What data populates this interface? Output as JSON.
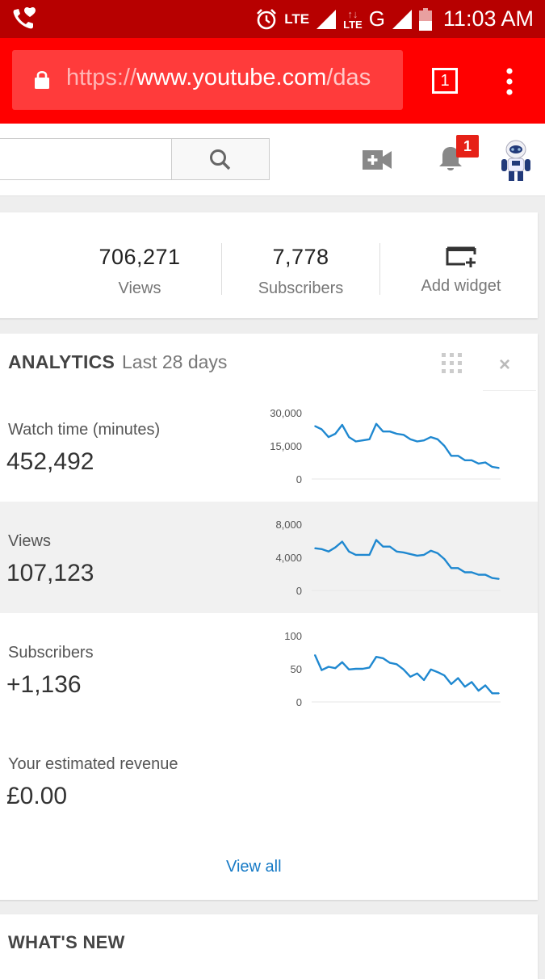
{
  "status_bar": {
    "network_label": "LTE",
    "data_label": "LTE",
    "network_type": "G",
    "time": "11:03 AM"
  },
  "browser": {
    "url_scheme": "https://",
    "url_host": "www.youtube.com",
    "url_path": "/das",
    "tab_count": "1"
  },
  "header": {
    "notification_count": "1",
    "icons": [
      "search-icon",
      "upload-video-icon",
      "bell-icon",
      "avatar"
    ]
  },
  "stats": [
    {
      "value": "706,271",
      "label": "Views"
    },
    {
      "value": "7,778",
      "label": "Subscribers"
    },
    {
      "value": "",
      "label": "Add widget"
    }
  ],
  "analytics": {
    "title": "ANALYTICS",
    "range": "Last 28 days",
    "metrics": [
      {
        "label": "Watch time (minutes)",
        "value": "452,492"
      },
      {
        "label": "Views",
        "value": "107,123"
      },
      {
        "label": "Subscribers",
        "value": "+1,136"
      },
      {
        "label": "Your estimated revenue",
        "value": "£0.00"
      }
    ],
    "view_all": "View all"
  },
  "whats_new": {
    "title": "WHAT'S NEW"
  },
  "colors": {
    "status_bar": "#b70000",
    "toolbar": "#ff0000",
    "sparkline": "#1f88d0",
    "link": "#167ac6"
  },
  "chart_data": [
    {
      "type": "line",
      "series": [
        {
          "values": [
            24000,
            22500,
            19000,
            20500,
            24500,
            19000,
            17000,
            17500,
            18000,
            25000,
            21500,
            21500,
            20500,
            20000,
            18000,
            17000,
            17500,
            19000,
            18000,
            15000,
            10500,
            10500,
            8500,
            8500,
            7000,
            7500,
            5500,
            5000
          ]
        }
      ],
      "y_ticks": [
        "30,000",
        "15,000",
        "0"
      ],
      "ylim": [
        0,
        30000
      ]
    },
    {
      "type": "line",
      "series": [
        {
          "values": [
            5100,
            5000,
            4700,
            5200,
            5900,
            4700,
            4300,
            4300,
            4300,
            6100,
            5300,
            5300,
            4700,
            4600,
            4400,
            4200,
            4300,
            4800,
            4500,
            3800,
            2700,
            2700,
            2200,
            2200,
            1900,
            1900,
            1500,
            1400
          ]
        }
      ],
      "y_ticks": [
        "8,000",
        "4,000",
        "0"
      ],
      "ylim": [
        0,
        8000
      ]
    },
    {
      "type": "line",
      "series": [
        {
          "values": [
            71,
            48,
            53,
            51,
            60,
            49,
            50,
            50,
            52,
            68,
            66,
            59,
            57,
            49,
            38,
            43,
            33,
            49,
            45,
            40,
            27,
            36,
            23,
            30,
            17,
            25,
            13,
            13
          ]
        }
      ],
      "y_ticks": [
        "100",
        "50",
        "0"
      ],
      "ylim": [
        0,
        100
      ]
    }
  ]
}
